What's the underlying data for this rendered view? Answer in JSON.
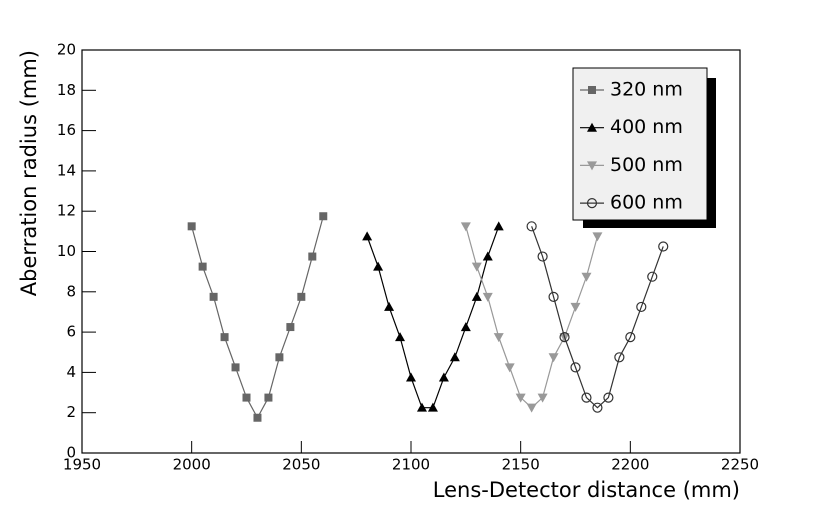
{
  "chart_data": {
    "type": "line",
    "xlabel": "Lens-Detector distance (mm)",
    "ylabel": "Aberration radius (mm)",
    "xlim": [
      1950,
      2250
    ],
    "xticks": [
      1950,
      2000,
      2050,
      2100,
      2150,
      2200,
      2250
    ],
    "ylim": [
      0,
      20
    ],
    "yticks": [
      0,
      2,
      4,
      6,
      8,
      10,
      12,
      14,
      16,
      18,
      20
    ],
    "legend": "upper right",
    "series": [
      {
        "name": "320 nm",
        "color": "#666666",
        "marker": "square",
        "x": [
          2000,
          2005,
          2010,
          2015,
          2020,
          2025,
          2030,
          2035,
          2040,
          2045,
          2050,
          2055,
          2060
        ],
        "values": [
          11.25,
          9.25,
          7.75,
          5.75,
          4.25,
          2.75,
          1.75,
          2.75,
          4.75,
          6.25,
          7.75,
          9.75,
          11.75
        ]
      },
      {
        "name": "400 nm",
        "color": "#000000",
        "marker": "triangle-up",
        "x": [
          2080,
          2085,
          2090,
          2095,
          2100,
          2105,
          2110,
          2115,
          2120,
          2125,
          2130,
          2135,
          2140
        ],
        "values": [
          10.75,
          9.25,
          7.25,
          5.75,
          3.75,
          2.25,
          2.25,
          3.75,
          4.75,
          6.25,
          7.75,
          9.75,
          11.25
        ]
      },
      {
        "name": "500 nm",
        "color": "#999999",
        "marker": "triangle-down",
        "x": [
          2125,
          2130,
          2135,
          2140,
          2145,
          2150,
          2155,
          2160,
          2165,
          2170,
          2175,
          2180,
          2185
        ],
        "values": [
          11.25,
          9.25,
          7.75,
          5.75,
          4.25,
          2.75,
          2.25,
          2.75,
          4.75,
          5.75,
          7.25,
          8.75,
          10.75
        ]
      },
      {
        "name": "600 nm",
        "color": "#333333",
        "marker": "circle-open",
        "x": [
          2155,
          2160,
          2165,
          2170,
          2175,
          2180,
          2185,
          2190,
          2195,
          2200,
          2205,
          2210,
          2215
        ],
        "values": [
          11.25,
          9.75,
          7.75,
          5.75,
          4.25,
          2.75,
          2.25,
          2.75,
          4.75,
          5.75,
          7.25,
          8.75,
          10.25
        ]
      }
    ]
  }
}
